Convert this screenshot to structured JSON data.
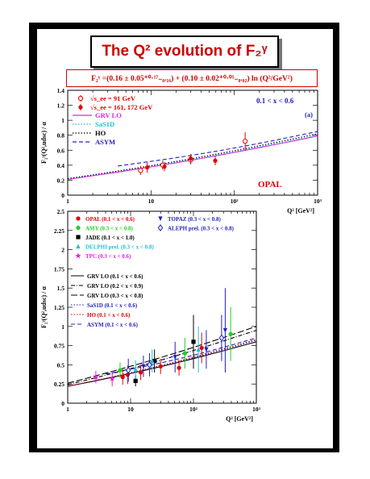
{
  "title": "The Q² evolution of F₂ᵞ",
  "formula": "F₂ᵞ =(0.16 ± 0.05⁺⁰·¹⁷₋₀.₁₆) + (0.10 ± 0.02⁺⁰·⁰⁵₋₀.₀₂) ln (Q²/GeV²)",
  "colors": {
    "red": "#e00000",
    "magenta": "#e020e0",
    "cyan": "#20c0d0",
    "green": "#20d020",
    "blue": "#2020c0",
    "black": "#000000"
  },
  "chart_data": [
    {
      "type": "scatter",
      "xscale": "log",
      "xlim": [
        1,
        1000
      ],
      "ylim": [
        0,
        1.4
      ],
      "xlabel": "Q² [GeV²]",
      "ylabel": "F₂ᵞ(Q²,udsc) / α",
      "range_label": "0.1 < x < 0.6",
      "panel_label": "(a)",
      "experiment_label": "OPAL",
      "xticks": [
        "1",
        "10",
        "10²",
        "10³"
      ],
      "yticks": [
        "0",
        "0.2",
        "0.4",
        "0.6",
        "0.8",
        "1",
        "1.2",
        "1.4"
      ],
      "legend": [
        {
          "label": "√s_ee = 91 GeV",
          "marker": "open-circle",
          "color": "#e00000"
        },
        {
          "label": "√s_ee = 161, 172 GeV",
          "marker": "filled-circle",
          "color": "#e00000"
        },
        {
          "label": "GRV LO",
          "style": "solid",
          "color": "#e020e0"
        },
        {
          "label": "SaS1D",
          "style": "dotted",
          "color": "#20c0d0"
        },
        {
          "label": "HO",
          "style": "dotted",
          "color": "#000000"
        },
        {
          "label": "ASYM",
          "style": "dashed",
          "color": "#2020c0"
        }
      ],
      "series": [
        {
          "name": "√s_ee = 91 GeV",
          "marker": "open-circle",
          "points": [
            {
              "x": 7.5,
              "y": 0.33,
              "e": 0.06
            },
            {
              "x": 13.8,
              "y": 0.4,
              "e": 0.06
            },
            {
              "x": 30,
              "y": 0.47,
              "e": 0.06
            },
            {
              "x": 135,
              "y": 0.72,
              "e": 0.12
            }
          ]
        },
        {
          "name": "√s_ee = 161, 172 GeV",
          "marker": "filled-circle",
          "points": [
            {
              "x": 9,
              "y": 0.37,
              "e": 0.07
            },
            {
              "x": 14.5,
              "y": 0.38,
              "e": 0.06
            },
            {
              "x": 30,
              "y": 0.49,
              "e": 0.06
            },
            {
              "x": 59,
              "y": 0.46,
              "e": 0.06
            }
          ]
        }
      ],
      "curves": [
        {
          "name": "GRV LO",
          "style": "solid",
          "color": "#e020e0",
          "x": [
            1,
            1000
          ],
          "y": [
            0.21,
            0.79
          ]
        },
        {
          "name": "SaS1D",
          "style": "dotted",
          "color": "#20c0d0",
          "x": [
            1,
            1000
          ],
          "y": [
            0.22,
            0.8
          ]
        },
        {
          "name": "HO",
          "style": "dotted",
          "color": "#000000",
          "x": [
            1,
            1000
          ],
          "y": [
            0.22,
            0.82
          ]
        },
        {
          "name": "ASYM",
          "style": "dashed",
          "color": "#2020c0",
          "x": [
            4,
            1000
          ],
          "y": [
            0.39,
            0.85
          ]
        }
      ]
    },
    {
      "type": "scatter",
      "xscale": "log",
      "xlim": [
        1,
        1000
      ],
      "ylim": [
        0,
        2.5
      ],
      "xlabel": "Q² [GeV²]",
      "ylabel": "F₂ᵞ(Q²,udsc) / α",
      "xticks": [
        "1",
        "10",
        "10²",
        "10³"
      ],
      "yticks": [
        "0",
        "0.25",
        "0.5",
        "0.75",
        "1",
        "1.25",
        "1.5",
        "1.75",
        "2",
        "2.25",
        "2.5"
      ],
      "legend_left": [
        {
          "label": "OPAL (0.1 < x < 0.6)",
          "color": "#e00000",
          "marker": "filled-circle"
        },
        {
          "label": "AMY (0.3 < x < 0.8)",
          "color": "#20d020",
          "marker": "filled-circle"
        },
        {
          "label": "JADE (0.1 < x < 1.0)",
          "color": "#000000",
          "marker": "square"
        },
        {
          "label": "DELPHI prel. (0.3 < x < 0.8)",
          "color": "#20c0d0",
          "marker": "triangle"
        },
        {
          "label": "TPC (0.3 < x < 0.6)",
          "color": "#e020e0",
          "marker": "star"
        }
      ],
      "legend_right": [
        {
          "label": "TOPAZ (0.3 < x < 0.8)",
          "color": "#2020c0",
          "marker": "triangle-down"
        },
        {
          "label": "ALEPH prel. (0.3 < x < 0.8)",
          "color": "#2020c0",
          "marker": "open-diamond"
        }
      ],
      "legend_curves": [
        {
          "label": "GRV LO (0.1 < x < 0.6)",
          "color": "#000000",
          "style": "solid"
        },
        {
          "label": "GRV LO (0.2 < x < 0.9)",
          "color": "#000000",
          "style": "dashdot"
        },
        {
          "label": "GRV LO (0.3 < x < 0.8)",
          "color": "#000000",
          "style": "longdash"
        },
        {
          "label": "SaS1D (0.1 < x < 0.6)",
          "color": "#2020c0",
          "style": "dotted"
        },
        {
          "label": "HO (0.1 < x < 0.6)",
          "color": "#e00000",
          "style": "dotted"
        },
        {
          "label": "ASYM (0.1 < x < 0.6)",
          "color": "#2020c0",
          "style": "dashed"
        }
      ],
      "series": [
        {
          "name": "OPAL (0.1 < x < 0.6)",
          "color": "#e00000",
          "marker": "filled-circle",
          "points": [
            {
              "x": 7.5,
              "y": 0.34,
              "e": 0.1
            },
            {
              "x": 9,
              "y": 0.37,
              "e": 0.12
            },
            {
              "x": 14.5,
              "y": 0.4,
              "e": 0.1
            },
            {
              "x": 30,
              "y": 0.48,
              "e": 0.1
            },
            {
              "x": 59,
              "y": 0.46,
              "e": 0.1
            },
            {
              "x": 135,
              "y": 0.72,
              "e": 0.2
            }
          ]
        },
        {
          "name": "AMY (0.3 < x < 0.8)",
          "color": "#20d020",
          "marker": "filled-circle",
          "points": [
            {
              "x": 6.8,
              "y": 0.43,
              "e": 0.1
            },
            {
              "x": 73,
              "y": 0.65,
              "e": 0.2
            },
            {
              "x": 390,
              "y": 0.9,
              "e": 0.35
            }
          ]
        },
        {
          "name": "JADE (0.1 < x < 1.0)",
          "color": "#000000",
          "marker": "square",
          "points": [
            {
              "x": 12,
              "y": 0.29,
              "e": 0.07
            },
            {
              "x": 24,
              "y": 0.55,
              "e": 0.15
            },
            {
              "x": 100,
              "y": 0.8,
              "e": 0.35
            }
          ]
        },
        {
          "name": "DELPHI prel. (0.3 < x < 0.8)",
          "color": "#20c0d0",
          "marker": "triangle",
          "points": [
            {
              "x": 12,
              "y": 0.44,
              "e": 0.12
            },
            {
              "x": 22,
              "y": 0.55,
              "e": 0.15
            },
            {
              "x": 120,
              "y": 0.7,
              "e": 0.3
            }
          ]
        },
        {
          "name": "TPC (0.3 < x < 0.6)",
          "color": "#e020e0",
          "marker": "star",
          "points": [
            {
              "x": 2.8,
              "y": 0.34,
              "e": 0.08
            },
            {
              "x": 5.1,
              "y": 0.32,
              "e": 0.1
            }
          ]
        },
        {
          "name": "TOPAZ (0.3 < x < 0.8)",
          "color": "#2020c0",
          "marker": "triangle-down",
          "points": [
            {
              "x": 16,
              "y": 0.48,
              "e": 0.14
            },
            {
              "x": 51,
              "y": 0.6,
              "e": 0.2
            },
            {
              "x": 160,
              "y": 0.7,
              "e": 0.25
            },
            {
              "x": 320,
              "y": 0.95,
              "e": 0.55
            }
          ]
        },
        {
          "name": "ALEPH prel. (0.3 < x < 0.8)",
          "color": "#2020c0",
          "marker": "open-diamond",
          "points": [
            {
              "x": 9.2,
              "y": 0.43,
              "e": 0.15
            },
            {
              "x": 20,
              "y": 0.5,
              "e": 0.15
            },
            {
              "x": 280,
              "y": 0.85,
              "e": 0.3
            }
          ]
        }
      ],
      "curves": [
        {
          "name": "GRV LO (0.1 < x < 0.6)",
          "color": "#000000",
          "style": "solid",
          "x": [
            1,
            1000
          ],
          "y": [
            0.22,
            0.8
          ]
        },
        {
          "name": "GRV LO (0.2 < x < 0.9)",
          "color": "#000000",
          "style": "dashdot",
          "x": [
            1,
            1000
          ],
          "y": [
            0.24,
            0.95
          ]
        },
        {
          "name": "GRV LO (0.3 < x < 0.8)",
          "color": "#000000",
          "style": "longdash",
          "x": [
            1,
            1000
          ],
          "y": [
            0.26,
            1.0
          ]
        },
        {
          "name": "SaS1D (0.1 < x < 0.6)",
          "color": "#2020c0",
          "style": "dotted",
          "x": [
            1,
            1000
          ],
          "y": [
            0.22,
            0.82
          ]
        },
        {
          "name": "HO (0.1 < x < 0.6)",
          "color": "#e00000",
          "style": "dotted",
          "x": [
            1,
            1000
          ],
          "y": [
            0.22,
            0.83
          ]
        },
        {
          "name": "ASYM (0.1 < x < 0.6)",
          "color": "#2020c0",
          "style": "dashed",
          "x": [
            4,
            1000
          ],
          "y": [
            0.38,
            0.85
          ]
        }
      ]
    }
  ]
}
